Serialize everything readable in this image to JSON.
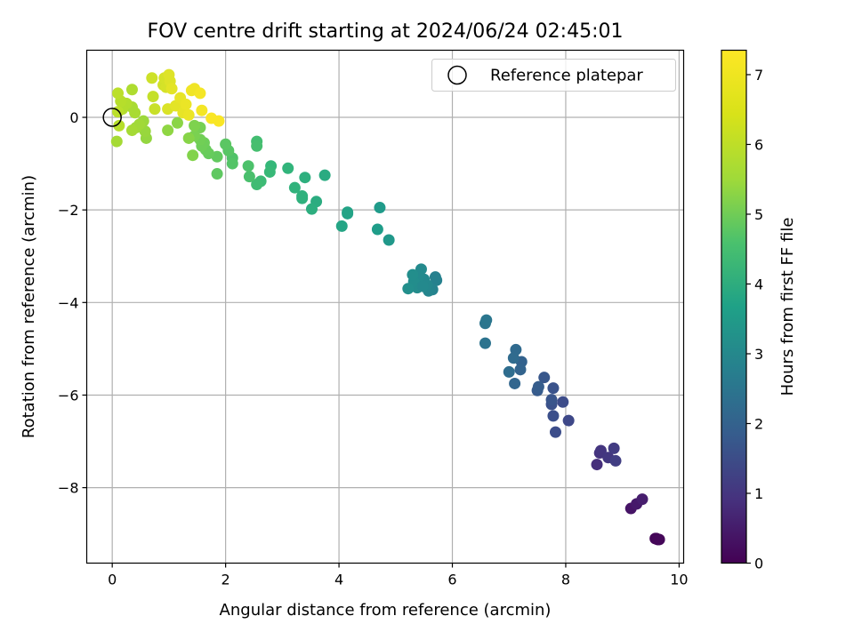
{
  "chart_data": {
    "type": "scatter",
    "title": "FOV centre drift starting at 2024/06/24 02:45:01",
    "xlabel": "Angular distance from reference (arcmin)",
    "ylabel": "Rotation from reference (arcmin)",
    "xlim": [
      -0.45,
      10.08
    ],
    "ylim": [
      -9.63,
      1.45
    ],
    "xticks": [
      0,
      2,
      4,
      6,
      8,
      10
    ],
    "xtick_labels": [
      "0",
      "2",
      "4",
      "6",
      "8",
      "10"
    ],
    "yticks": [
      0,
      -2,
      -4,
      -6,
      -8
    ],
    "ytick_labels": [
      "0",
      "−2",
      "−4",
      "−6",
      "−8"
    ],
    "grid": true,
    "legend": {
      "placement": "upper right",
      "entries": [
        {
          "label": "Reference platepar",
          "marker": "open-circle"
        }
      ]
    },
    "reference_point": {
      "x": 0,
      "y": 0
    },
    "colorbar": {
      "label": "Hours from first FF file",
      "colormap": "viridis",
      "range": [
        0,
        7.35
      ],
      "ticks": [
        0,
        1,
        2,
        3,
        4,
        5,
        6,
        7
      ],
      "tick_labels": [
        "0",
        "1",
        "2",
        "3",
        "4",
        "5",
        "6",
        "7"
      ]
    },
    "points": [
      {
        "x": 9.6,
        "y": -9.1,
        "c": 0.05
      },
      {
        "x": 9.62,
        "y": -9.12,
        "c": 0.08
      },
      {
        "x": 9.58,
        "y": -9.1,
        "c": 0.1
      },
      {
        "x": 9.65,
        "y": -9.12,
        "c": 0.12
      },
      {
        "x": 9.15,
        "y": -8.45,
        "c": 0.4
      },
      {
        "x": 9.25,
        "y": -8.35,
        "c": 0.5
      },
      {
        "x": 9.35,
        "y": -8.25,
        "c": 0.6
      },
      {
        "x": 8.55,
        "y": -7.5,
        "c": 1.0
      },
      {
        "x": 8.6,
        "y": -7.25,
        "c": 1.1
      },
      {
        "x": 8.62,
        "y": -7.2,
        "c": 1.15
      },
      {
        "x": 8.75,
        "y": -7.35,
        "c": 1.2
      },
      {
        "x": 8.85,
        "y": -7.15,
        "c": 1.3
      },
      {
        "x": 8.88,
        "y": -7.42,
        "c": 1.35
      },
      {
        "x": 8.05,
        "y": -6.55,
        "c": 1.6
      },
      {
        "x": 7.95,
        "y": -6.15,
        "c": 1.7
      },
      {
        "x": 7.82,
        "y": -6.8,
        "c": 1.75
      },
      {
        "x": 7.78,
        "y": -6.45,
        "c": 1.8
      },
      {
        "x": 7.75,
        "y": -6.2,
        "c": 1.85
      },
      {
        "x": 7.78,
        "y": -5.85,
        "c": 1.9
      },
      {
        "x": 7.75,
        "y": -6.1,
        "c": 1.95
      },
      {
        "x": 7.62,
        "y": -5.62,
        "c": 2.0
      },
      {
        "x": 7.5,
        "y": -5.9,
        "c": 2.1
      },
      {
        "x": 7.52,
        "y": -5.82,
        "c": 2.15
      },
      {
        "x": 7.22,
        "y": -5.28,
        "c": 2.3
      },
      {
        "x": 7.2,
        "y": -5.45,
        "c": 2.35
      },
      {
        "x": 7.1,
        "y": -5.75,
        "c": 2.4
      },
      {
        "x": 7.12,
        "y": -5.02,
        "c": 2.5
      },
      {
        "x": 7.08,
        "y": -5.2,
        "c": 2.55
      },
      {
        "x": 7.0,
        "y": -5.5,
        "c": 2.6
      },
      {
        "x": 6.58,
        "y": -4.88,
        "c": 2.8
      },
      {
        "x": 6.58,
        "y": -4.45,
        "c": 2.85
      },
      {
        "x": 6.6,
        "y": -4.38,
        "c": 2.9
      },
      {
        "x": 5.7,
        "y": -3.45,
        "c": 3.2
      },
      {
        "x": 5.72,
        "y": -3.52,
        "c": 3.25
      },
      {
        "x": 5.65,
        "y": -3.72,
        "c": 3.3
      },
      {
        "x": 5.58,
        "y": -3.75,
        "c": 3.35
      },
      {
        "x": 5.55,
        "y": -3.62,
        "c": 3.4
      },
      {
        "x": 5.5,
        "y": -3.5,
        "c": 3.45
      },
      {
        "x": 5.45,
        "y": -3.28,
        "c": 3.5
      },
      {
        "x": 5.4,
        "y": -3.45,
        "c": 3.5
      },
      {
        "x": 5.38,
        "y": -3.68,
        "c": 3.55
      },
      {
        "x": 5.32,
        "y": -3.55,
        "c": 3.6
      },
      {
        "x": 5.3,
        "y": -3.4,
        "c": 3.62
      },
      {
        "x": 5.22,
        "y": -3.7,
        "c": 3.65
      },
      {
        "x": 5.48,
        "y": -3.65,
        "c": 3.48
      },
      {
        "x": 4.88,
        "y": -2.65,
        "c": 3.9
      },
      {
        "x": 4.72,
        "y": -1.95,
        "c": 4.0
      },
      {
        "x": 4.68,
        "y": -2.42,
        "c": 4.05
      },
      {
        "x": 4.15,
        "y": -2.08,
        "c": 4.2
      },
      {
        "x": 4.15,
        "y": -2.05,
        "c": 4.25
      },
      {
        "x": 4.05,
        "y": -2.35,
        "c": 4.3
      },
      {
        "x": 3.75,
        "y": -1.25,
        "c": 4.5
      },
      {
        "x": 3.6,
        "y": -1.82,
        "c": 4.55
      },
      {
        "x": 3.52,
        "y": -1.98,
        "c": 4.6
      },
      {
        "x": 3.4,
        "y": -1.3,
        "c": 4.65
      },
      {
        "x": 3.35,
        "y": -1.75,
        "c": 4.7
      },
      {
        "x": 3.35,
        "y": -1.7,
        "c": 4.72
      },
      {
        "x": 3.22,
        "y": -1.52,
        "c": 4.75
      },
      {
        "x": 3.1,
        "y": -1.1,
        "c": 4.8
      },
      {
        "x": 2.8,
        "y": -1.05,
        "c": 4.9
      },
      {
        "x": 2.78,
        "y": -1.18,
        "c": 4.95
      },
      {
        "x": 2.62,
        "y": -1.38,
        "c": 5.0
      },
      {
        "x": 2.55,
        "y": -1.45,
        "c": 5.05
      },
      {
        "x": 2.55,
        "y": -0.52,
        "c": 5.1
      },
      {
        "x": 2.55,
        "y": -0.62,
        "c": 5.15
      },
      {
        "x": 2.42,
        "y": -1.28,
        "c": 5.2
      },
      {
        "x": 2.4,
        "y": -1.05,
        "c": 5.25
      },
      {
        "x": 2.12,
        "y": -0.88,
        "c": 5.3
      },
      {
        "x": 2.12,
        "y": -1.0,
        "c": 5.35
      },
      {
        "x": 2.05,
        "y": -0.72,
        "c": 5.4
      },
      {
        "x": 2.0,
        "y": -0.58,
        "c": 5.45
      },
      {
        "x": 1.85,
        "y": -1.22,
        "c": 5.5
      },
      {
        "x": 1.85,
        "y": -0.85,
        "c": 5.55
      },
      {
        "x": 1.7,
        "y": -0.78,
        "c": 5.6
      },
      {
        "x": 1.65,
        "y": -0.7,
        "c": 5.65
      },
      {
        "x": 1.62,
        "y": -0.55,
        "c": 5.7
      },
      {
        "x": 1.58,
        "y": -0.62,
        "c": 5.72
      },
      {
        "x": 1.55,
        "y": -0.48,
        "c": 5.75
      },
      {
        "x": 1.55,
        "y": -0.22,
        "c": 5.8
      },
      {
        "x": 1.45,
        "y": -0.4,
        "c": 5.85
      },
      {
        "x": 1.45,
        "y": -0.18,
        "c": 5.9
      },
      {
        "x": 1.42,
        "y": -0.82,
        "c": 5.95
      },
      {
        "x": 1.35,
        "y": -0.45,
        "c": 6.0
      },
      {
        "x": 1.15,
        "y": -0.12,
        "c": 6.05
      },
      {
        "x": 0.98,
        "y": -0.28,
        "c": 6.1
      },
      {
        "x": 0.6,
        "y": -0.45,
        "c": 6.15
      },
      {
        "x": 0.58,
        "y": -0.3,
        "c": 6.2
      },
      {
        "x": 0.55,
        "y": -0.08,
        "c": 6.25
      },
      {
        "x": 0.48,
        "y": -0.15,
        "c": 6.3
      },
      {
        "x": 0.42,
        "y": -0.22,
        "c": 6.3
      },
      {
        "x": 0.35,
        "y": -0.28,
        "c": 6.35
      },
      {
        "x": 0.4,
        "y": 0.1,
        "c": 6.4
      },
      {
        "x": 0.35,
        "y": 0.22,
        "c": 6.4
      },
      {
        "x": 0.35,
        "y": 0.6,
        "c": 6.45
      },
      {
        "x": 0.25,
        "y": 0.3,
        "c": 6.5
      },
      {
        "x": 0.18,
        "y": 0.18,
        "c": 6.5
      },
      {
        "x": 0.15,
        "y": 0.35,
        "c": 6.55
      },
      {
        "x": 0.12,
        "y": -0.18,
        "c": 6.55
      },
      {
        "x": 0.1,
        "y": 0.52,
        "c": 6.6
      },
      {
        "x": 0.1,
        "y": 0.12,
        "c": 6.6
      },
      {
        "x": 0.08,
        "y": -0.52,
        "c": 6.35
      },
      {
        "x": 0.72,
        "y": 0.45,
        "c": 6.7
      },
      {
        "x": 0.75,
        "y": 0.18,
        "c": 6.75
      },
      {
        "x": 0.7,
        "y": 0.85,
        "c": 6.8
      },
      {
        "x": 0.9,
        "y": 0.7,
        "c": 6.85
      },
      {
        "x": 0.92,
        "y": 0.85,
        "c": 6.9
      },
      {
        "x": 0.95,
        "y": 0.65,
        "c": 6.9
      },
      {
        "x": 0.98,
        "y": 0.18,
        "c": 6.95
      },
      {
        "x": 1.0,
        "y": 0.92,
        "c": 7.0
      },
      {
        "x": 1.02,
        "y": 0.78,
        "c": 7.0
      },
      {
        "x": 1.05,
        "y": 0.62,
        "c": 7.05
      },
      {
        "x": 1.12,
        "y": 0.25,
        "c": 7.05
      },
      {
        "x": 1.2,
        "y": 0.42,
        "c": 7.1
      },
      {
        "x": 1.25,
        "y": 0.1,
        "c": 7.1
      },
      {
        "x": 1.3,
        "y": 0.28,
        "c": 7.15
      },
      {
        "x": 1.35,
        "y": 0.05,
        "c": 7.15
      },
      {
        "x": 1.4,
        "y": 0.58,
        "c": 7.2
      },
      {
        "x": 1.45,
        "y": 0.62,
        "c": 7.2
      },
      {
        "x": 1.55,
        "y": 0.52,
        "c": 7.25
      },
      {
        "x": 1.58,
        "y": 0.15,
        "c": 7.25
      },
      {
        "x": 1.75,
        "y": -0.02,
        "c": 7.3
      },
      {
        "x": 1.88,
        "y": -0.08,
        "c": 7.3
      }
    ]
  }
}
